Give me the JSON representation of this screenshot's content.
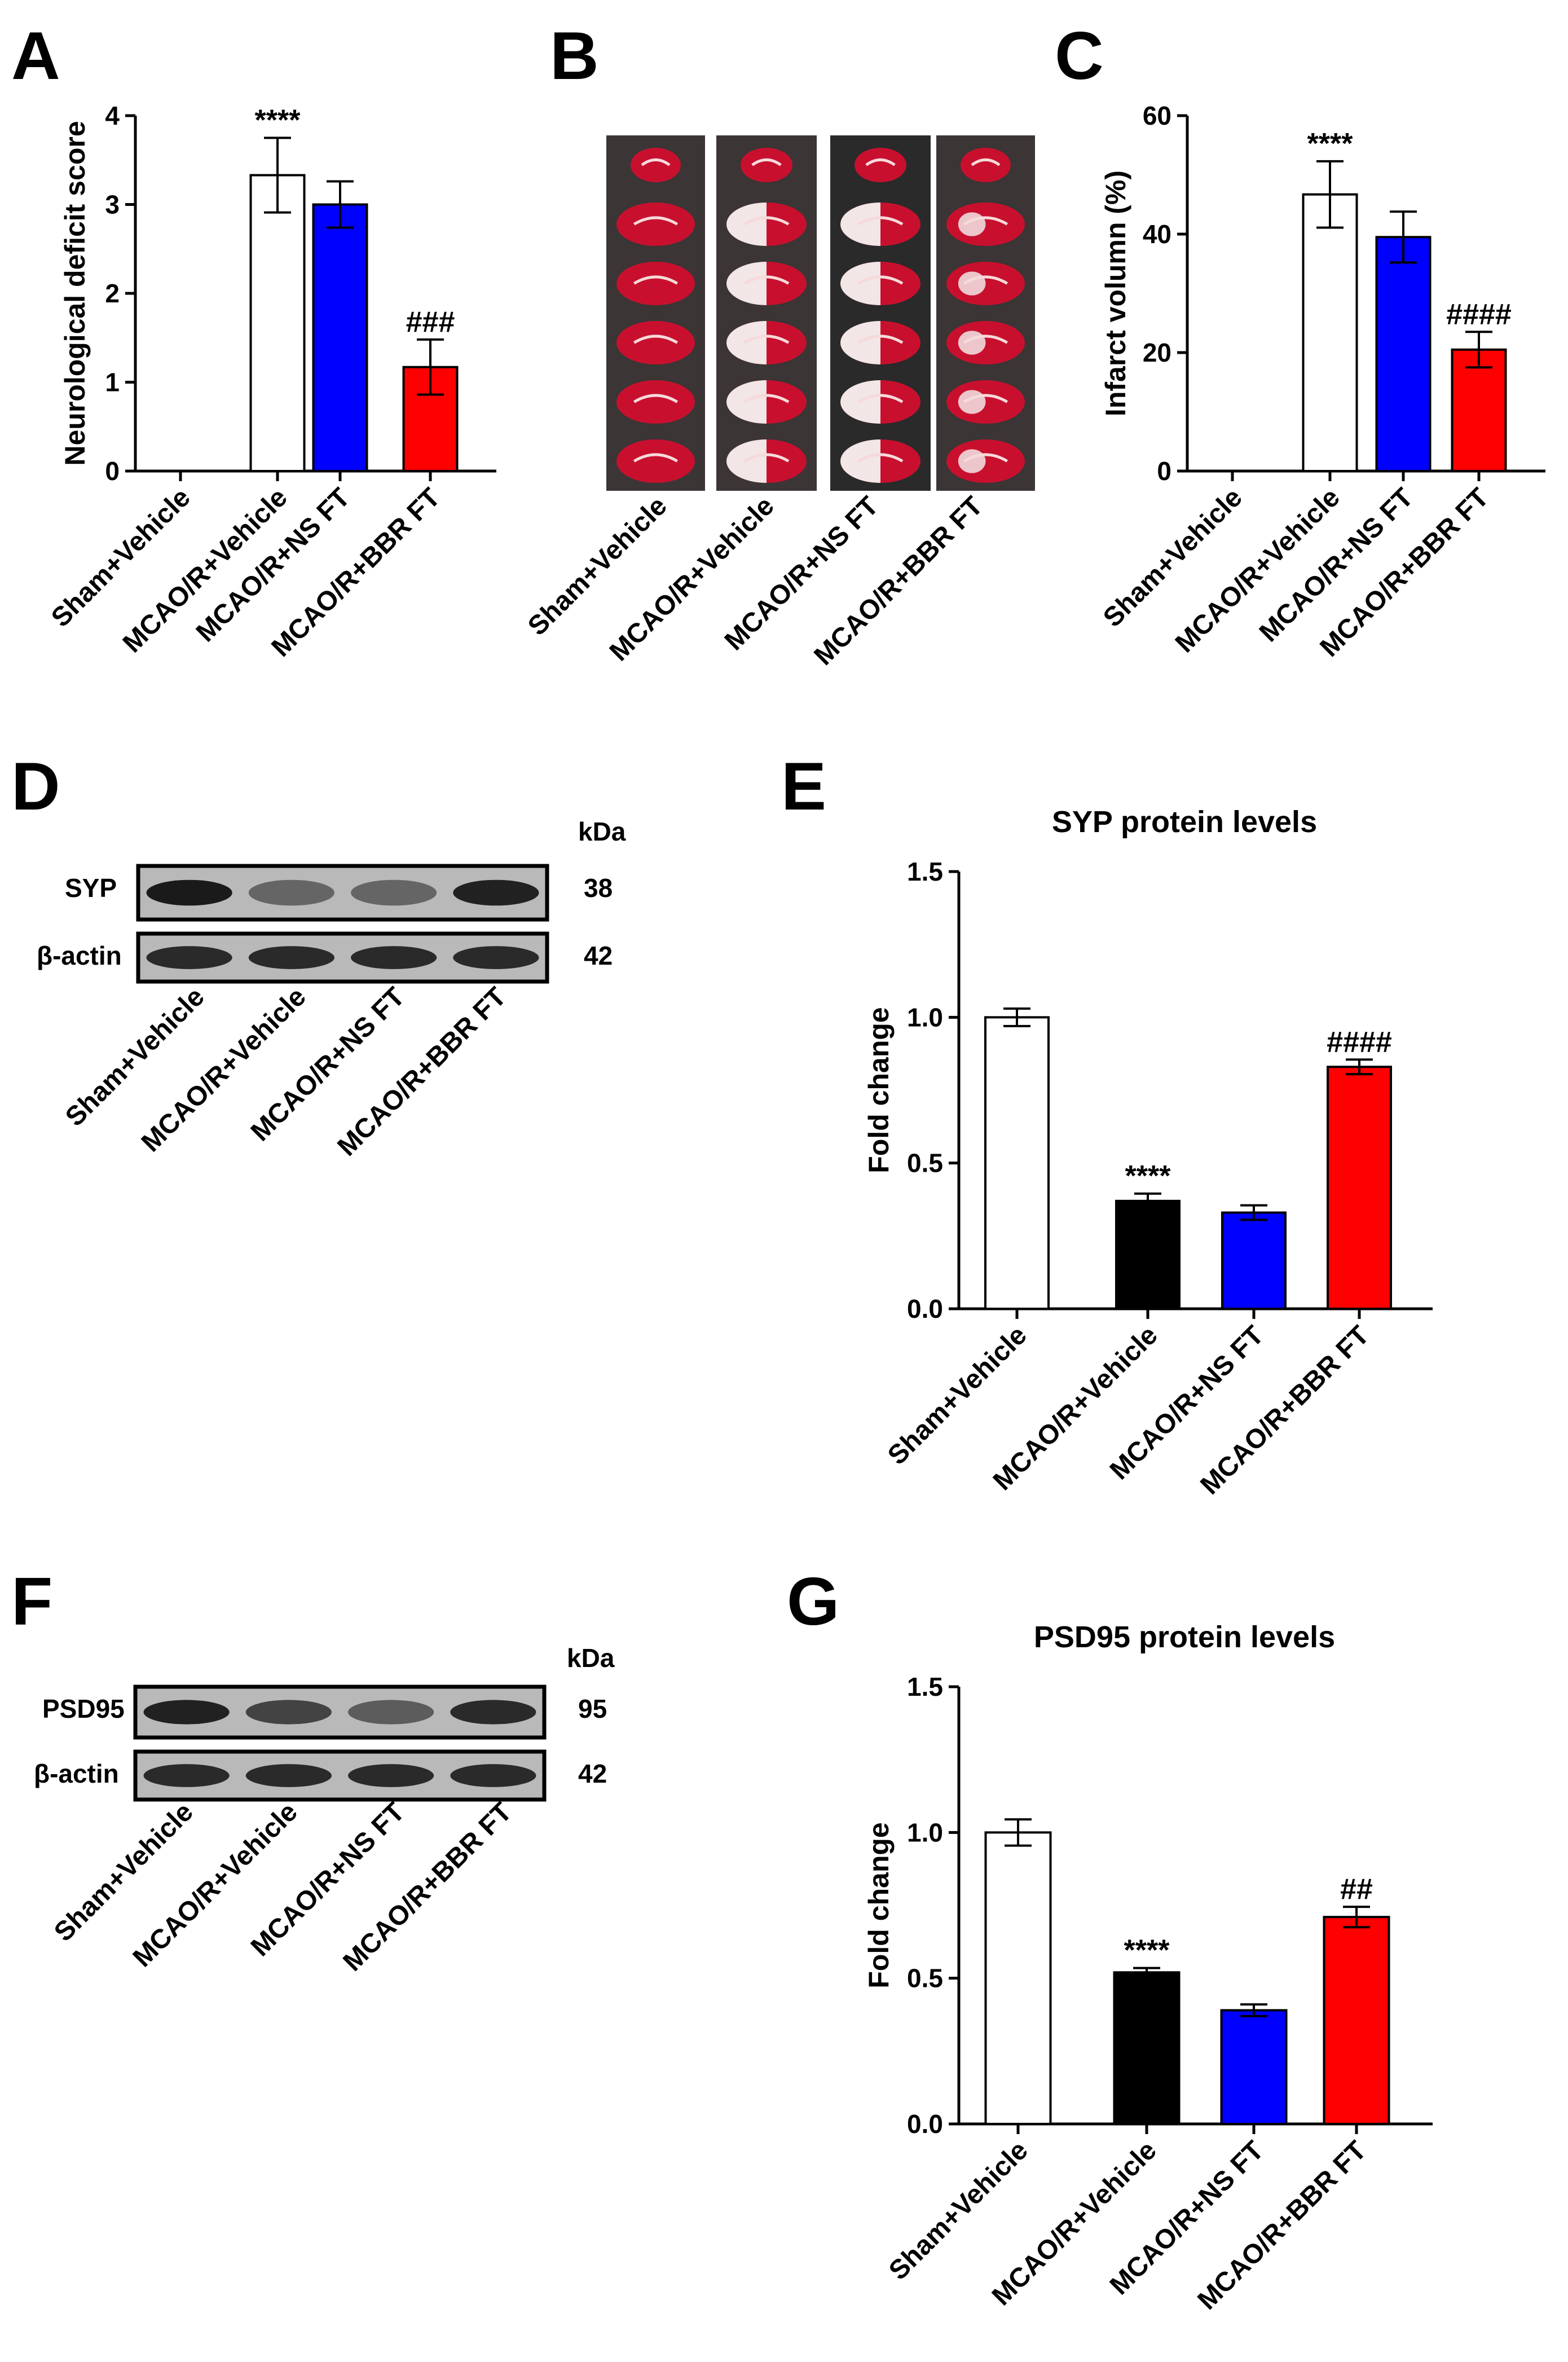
{
  "panels": {
    "A": "A",
    "B": "B",
    "C": "C",
    "D": "D",
    "E": "E",
    "F": "F",
    "G": "G"
  },
  "colors": {
    "sham": "#ffffff",
    "mcao": "#ffffff",
    "mcao_black": "#000000",
    "ns": "#0000ff",
    "bbr": "#ff0000",
    "stain_red": "#c8102e",
    "stain_white": "#f2e6e6"
  },
  "categories": [
    "Sham+Vehicle",
    "MCAO/R+Vehicle",
    "MCAO/R+NS FT",
    "MCAO/R+BBR FT"
  ],
  "western": {
    "kda_label": "kDa",
    "D": {
      "bands": [
        {
          "name": "SYP",
          "kda": "38"
        },
        {
          "name": "β-actin",
          "kda": "42"
        }
      ]
    },
    "F": {
      "bands": [
        {
          "name": "PSD95",
          "kda": "95"
        },
        {
          "name": "β-actin",
          "kda": "42"
        }
      ]
    }
  },
  "chart_data": [
    {
      "panel": "A",
      "type": "bar",
      "title": "",
      "ylabel": "Neurological deficit score",
      "categories": [
        "Sham+Vehicle",
        "MCAO/R+Vehicle",
        "MCAO/R+NS FT",
        "MCAO/R+BBR FT"
      ],
      "values": [
        0,
        3.33,
        3.0,
        1.17
      ],
      "errors": [
        0,
        0.42,
        0.26,
        0.31
      ],
      "annotations": [
        "",
        "****",
        "",
        "###"
      ],
      "ylim": [
        0,
        4
      ],
      "yticks": [
        "0",
        "1",
        "2",
        "3",
        "4"
      ],
      "ytick_values": [
        0,
        1,
        2,
        3,
        4
      ],
      "bar_colors": [
        "#ffffff",
        "#ffffff",
        "#0000ff",
        "#ff0000"
      ]
    },
    {
      "panel": "C",
      "type": "bar",
      "title": "",
      "ylabel": "Infarct volumn (%)",
      "categories": [
        "Sham+Vehicle",
        "MCAO/R+Vehicle",
        "MCAO/R+NS FT",
        "MCAO/R+BBR FT"
      ],
      "values": [
        0,
        46.7,
        39.5,
        20.5
      ],
      "errors": [
        0,
        5.6,
        4.3,
        3.0
      ],
      "annotations": [
        "",
        "****",
        "",
        "####"
      ],
      "ylim": [
        0,
        60
      ],
      "yticks": [
        "0",
        "20",
        "40",
        "60"
      ],
      "ytick_values": [
        0,
        20,
        40,
        60
      ],
      "bar_colors": [
        "#ffffff",
        "#ffffff",
        "#0000ff",
        "#ff0000"
      ]
    },
    {
      "panel": "E",
      "type": "bar",
      "title": "SYP protein levels",
      "ylabel": "Fold change",
      "categories": [
        "Sham+Vehicle",
        "MCAO/R+Vehicle",
        "MCAO/R+NS FT",
        "MCAO/R+BBR FT"
      ],
      "values": [
        1.0,
        0.37,
        0.33,
        0.83
      ],
      "errors": [
        0.03,
        0.025,
        0.025,
        0.025
      ],
      "annotations": [
        "",
        "****",
        "",
        "####"
      ],
      "ylim": [
        0,
        1.5
      ],
      "yticks": [
        "0.0",
        "0.5",
        "1.0",
        "1.5"
      ],
      "ytick_values": [
        0,
        0.5,
        1.0,
        1.5
      ],
      "bar_colors": [
        "#ffffff",
        "#000000",
        "#0000ff",
        "#ff0000"
      ]
    },
    {
      "panel": "G",
      "type": "bar",
      "title": "PSD95 protein levels",
      "ylabel": "Fold change",
      "categories": [
        "Sham+Vehicle",
        "MCAO/R+Vehicle",
        "MCAO/R+NS FT",
        "MCAO/R+BBR FT"
      ],
      "values": [
        1.0,
        0.52,
        0.39,
        0.71
      ],
      "errors": [
        0.045,
        0.015,
        0.02,
        0.035
      ],
      "annotations": [
        "",
        "****",
        "",
        "##"
      ],
      "ylim": [
        0,
        1.5
      ],
      "yticks": [
        "0.0",
        "0.5",
        "1.0",
        "1.5"
      ],
      "ytick_values": [
        0,
        0.5,
        1.0,
        1.5
      ],
      "bar_colors": [
        "#ffffff",
        "#000000",
        "#0000ff",
        "#ff0000"
      ]
    }
  ]
}
